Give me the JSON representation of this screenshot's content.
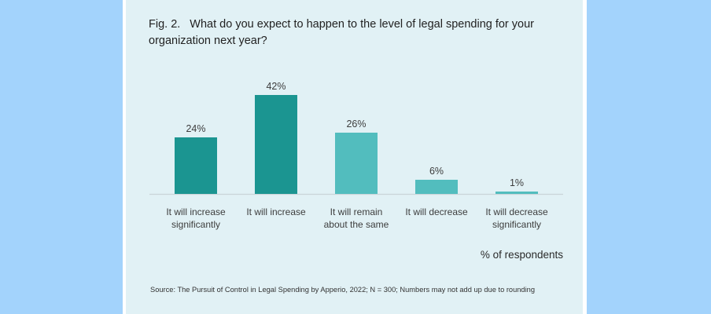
{
  "figure": {
    "number": "Fig. 2.",
    "question": "What do you expect to happen to the level of legal spending for your organization next year?"
  },
  "unit_label": "% of respondents",
  "source": "Source: The Pursuit of Control in Legal Spending by Apperio, 2022; N = 300; Numbers may not add up due to rounding",
  "colors": {
    "background": "#a3d3fc",
    "panel": "#e1f1f5",
    "dark_teal": "#1b9591",
    "light_teal": "#52bdbe",
    "baseline": "#c9d4d8"
  },
  "chart_data": {
    "type": "bar",
    "title": "What do you expect to happen to the level of legal spending for your organization next year?",
    "categories": [
      "It will increase significantly",
      "It will increase",
      "It will remain about the same",
      "It will decrease",
      "It will decrease significantly"
    ],
    "category_lines": [
      [
        "It will increase",
        "significantly"
      ],
      [
        "It will increase"
      ],
      [
        "It will remain",
        "about the same"
      ],
      [
        "It will decrease"
      ],
      [
        "It will decrease",
        "significantly"
      ]
    ],
    "values": [
      24,
      42,
      26,
      6,
      1
    ],
    "value_labels": [
      "24%",
      "42%",
      "26%",
      "6%",
      "1%"
    ],
    "bar_colors": [
      "#1b9591",
      "#1b9591",
      "#52bdbe",
      "#52bdbe",
      "#52bdbe"
    ],
    "xlabel": "",
    "ylabel": "% of respondents",
    "ylim": [
      0,
      42
    ],
    "grid": false,
    "legend": "none"
  }
}
